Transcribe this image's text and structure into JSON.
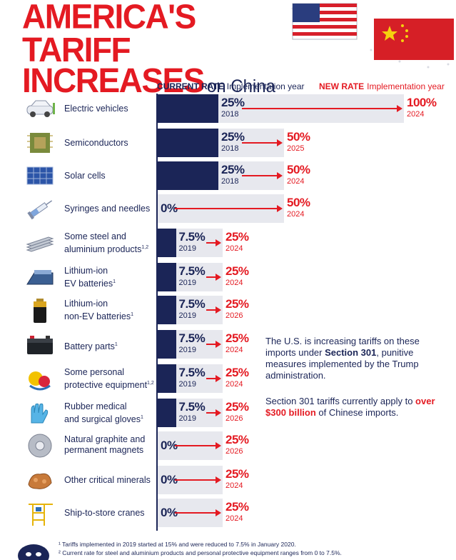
{
  "title": {
    "line1": "AMERICA'S TARIFF",
    "line2": "INCREASES",
    "suffix": "on China"
  },
  "headers": {
    "current_bold": "CURRENT RATE",
    "current_rest": "Implementation year",
    "new_bold": "NEW RATE",
    "new_rest": "Implementation year"
  },
  "chart_data": {
    "type": "bar",
    "title": "AMERICA'S TARIFF INCREASES on China",
    "series": [
      {
        "name": "CURRENT RATE",
        "values": [
          25,
          25,
          25,
          0,
          7.5,
          7.5,
          7.5,
          7.5,
          7.5,
          7.5,
          0,
          0,
          0
        ]
      },
      {
        "name": "NEW RATE",
        "values": [
          100,
          50,
          50,
          50,
          25,
          25,
          25,
          25,
          25,
          25,
          25,
          25,
          25
        ]
      }
    ],
    "categories": [
      "Electric vehicles",
      "Semiconductors",
      "Solar cells",
      "Syringes and needles",
      "Some steel and aluminium products",
      "Lithium-ion EV batteries",
      "Lithium-ion non-EV batteries",
      "Battery parts",
      "Some personal protective equipment",
      "Rubber medical and surgical gloves",
      "Natural graphite and permanent magnets",
      "Other critical minerals",
      "Ship-to-store cranes"
    ],
    "xlim": [
      0,
      100
    ]
  },
  "rows": [
    {
      "label1": "Electric vehicles",
      "label2": "",
      "sup": "",
      "cur": 25,
      "cur_text": "25%",
      "cur_year": "2018",
      "new": 100,
      "new_text": "100%",
      "new_year": "2024",
      "icon": "car-icon"
    },
    {
      "label1": "Semiconductors",
      "label2": "",
      "sup": "",
      "cur": 25,
      "cur_text": "25%",
      "cur_year": "2018",
      "new": 50,
      "new_text": "50%",
      "new_year": "2025",
      "icon": "chip-icon"
    },
    {
      "label1": "Solar cells",
      "label2": "",
      "sup": "",
      "cur": 25,
      "cur_text": "25%",
      "cur_year": "2018",
      "new": 50,
      "new_text": "50%",
      "new_year": "2024",
      "icon": "solar-panel-icon"
    },
    {
      "label1": "Syringes and needles",
      "label2": "",
      "sup": "",
      "cur": 0,
      "cur_text": "0%",
      "cur_year": "",
      "new": 50,
      "new_text": "50%",
      "new_year": "2024",
      "icon": "syringe-icon"
    },
    {
      "label1": "Some steel and",
      "label2": "aluminium products",
      "sup": "1,2",
      "cur": 7.5,
      "cur_text": "7.5%",
      "cur_year": "2019",
      "new": 25,
      "new_text": "25%",
      "new_year": "2024",
      "icon": "steel-icon"
    },
    {
      "label1": "Lithium-ion",
      "label2": "EV batteries",
      "sup": "1",
      "cur": 7.5,
      "cur_text": "7.5%",
      "cur_year": "2019",
      "new": 25,
      "new_text": "25%",
      "new_year": "2024",
      "icon": "ev-battery-icon"
    },
    {
      "label1": "Lithium-ion",
      "label2": "non-EV batteries",
      "sup": "1",
      "cur": 7.5,
      "cur_text": "7.5%",
      "cur_year": "2019",
      "new": 25,
      "new_text": "25%",
      "new_year": "2026",
      "icon": "battery-icon"
    },
    {
      "label1": "Battery parts",
      "label2": "",
      "sup": "1",
      "cur": 7.5,
      "cur_text": "7.5%",
      "cur_year": "2019",
      "new": 25,
      "new_text": "25%",
      "new_year": "2024",
      "icon": "car-battery-icon"
    },
    {
      "label1": "Some personal",
      "label2": "protective equipment",
      "sup": "1,2",
      "cur": 7.5,
      "cur_text": "7.5%",
      "cur_year": "2019",
      "new": 25,
      "new_text": "25%",
      "new_year": "2024",
      "icon": "ppe-icon"
    },
    {
      "label1": "Rubber medical",
      "label2": "and surgical gloves",
      "sup": "1",
      "cur": 7.5,
      "cur_text": "7.5%",
      "cur_year": "2019",
      "new": 25,
      "new_text": "25%",
      "new_year": "2026",
      "icon": "gloves-icon"
    },
    {
      "label1": "Natural graphite and",
      "label2": "permanent magnets",
      "sup": "",
      "cur": 0,
      "cur_text": "0%",
      "cur_year": "",
      "new": 25,
      "new_text": "25%",
      "new_year": "2026",
      "icon": "magnet-icon"
    },
    {
      "label1": "Other critical minerals",
      "label2": "",
      "sup": "",
      "cur": 0,
      "cur_text": "0%",
      "cur_year": "",
      "new": 25,
      "new_text": "25%",
      "new_year": "2024",
      "icon": "minerals-icon"
    },
    {
      "label1": "Ship-to-store cranes",
      "label2": "",
      "sup": "",
      "cur": 0,
      "cur_text": "0%",
      "cur_year": "",
      "new": 25,
      "new_text": "25%",
      "new_year": "2024",
      "icon": "crane-icon"
    }
  ],
  "note": {
    "p1_a": "The U.S. is increasing tariffs on these imports under ",
    "p1_b": "Section 301",
    "p1_c": ", punitive measures implemented by the Trump administration.",
    "p2_a": "Section 301 tariffs currently apply to ",
    "p2_b": "over $300 billion",
    "p2_c": " of Chinese imports."
  },
  "footnotes": {
    "f1": "¹ Tariffs implemented in 2019 started at 15% and were reduced to 7.5% in January 2020.",
    "f2": "² Current rate for steel and aluminium products and personal protective equipment ranges from 0 to 7.5%."
  },
  "colors": {
    "navy": "#1b2557",
    "red": "#e41a22",
    "bar_bg": "#e7e8ee"
  }
}
